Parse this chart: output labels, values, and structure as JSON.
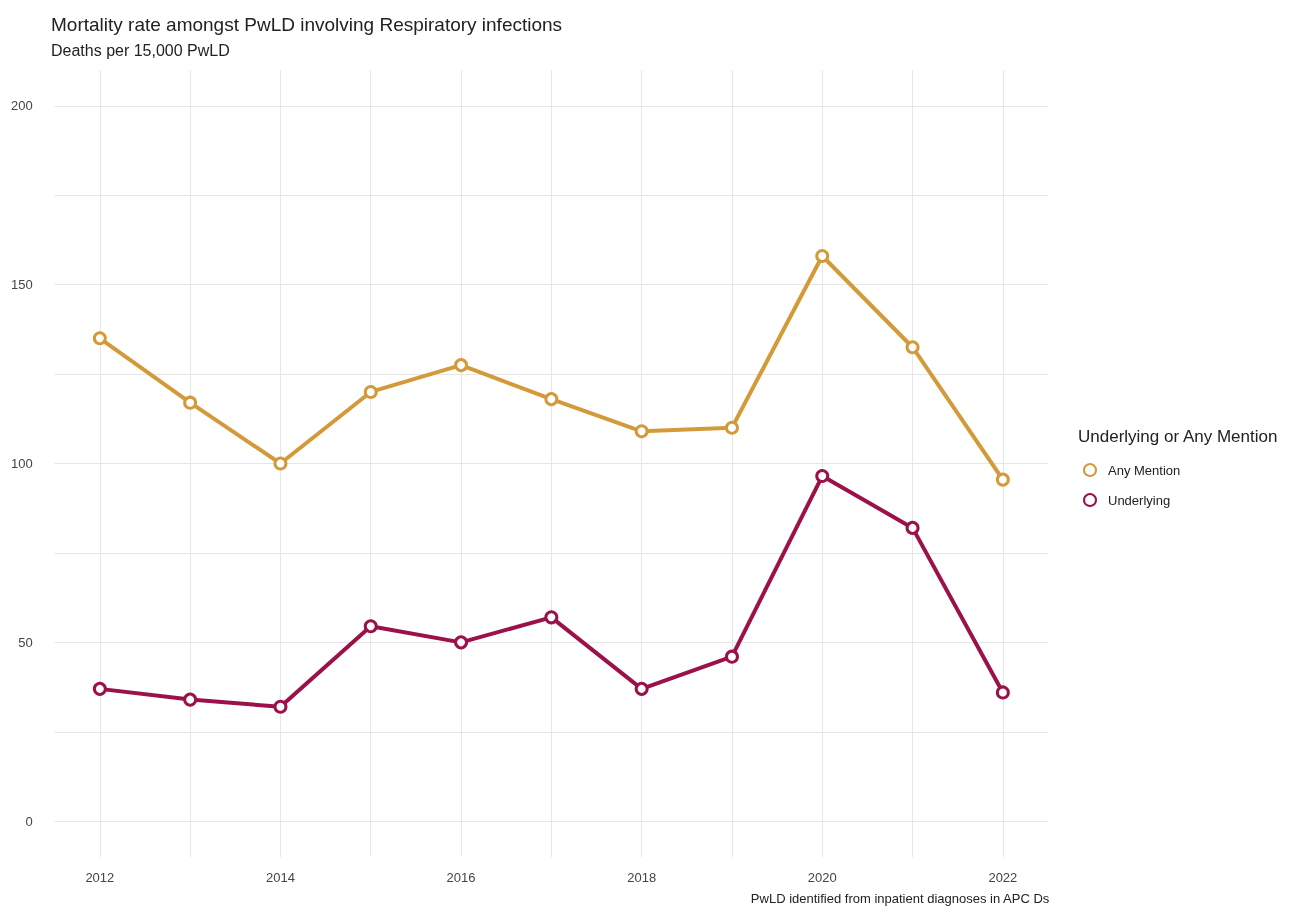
{
  "chart_data": {
    "type": "line",
    "title": "Mortality rate amongst PwLD involving Respiratory infections",
    "subtitle": "Deaths per 15,000 PwLD",
    "annotations": [
      "PwLD identified from inpatient diagnoses in APC Ds"
    ],
    "legend_title": "Underlying or Any Mention",
    "x": [
      2012,
      2013,
      2014,
      2015,
      2016,
      2017,
      2018,
      2019,
      2020,
      2021,
      2022
    ],
    "series": [
      {
        "name": "Any Mention",
        "color": "#d49a3a",
        "values": [
          135,
          117,
          100,
          120,
          127.5,
          118,
          109,
          110,
          158,
          132.5,
          95.5
        ]
      },
      {
        "name": "Underlying",
        "color": "#9b1149",
        "values": [
          37,
          34,
          32,
          54.5,
          50,
          57,
          37,
          46,
          96.5,
          82,
          36
        ]
      }
    ],
    "xlim": [
      2011.5,
      2022.5
    ],
    "xticks": [
      2012,
      {
        "value": 2013,
        "label": null
      },
      2014,
      {
        "value": 2015,
        "label": null
      },
      2016,
      {
        "value": 2017,
        "label": null
      },
      2018,
      {
        "value": 2019,
        "label": null
      },
      2020,
      {
        "value": 2021,
        "label": null
      },
      2022
    ],
    "ylim": [
      -10,
      210
    ],
    "yticks": [
      0,
      {
        "value": 25,
        "label": null
      },
      50,
      {
        "value": 75,
        "label": null
      },
      100,
      {
        "value": 125,
        "label": null
      },
      150,
      {
        "value": 175,
        "label": null
      },
      200
    ],
    "grid": true,
    "legend": "right",
    "marker": "circle",
    "line_style": "solid"
  }
}
